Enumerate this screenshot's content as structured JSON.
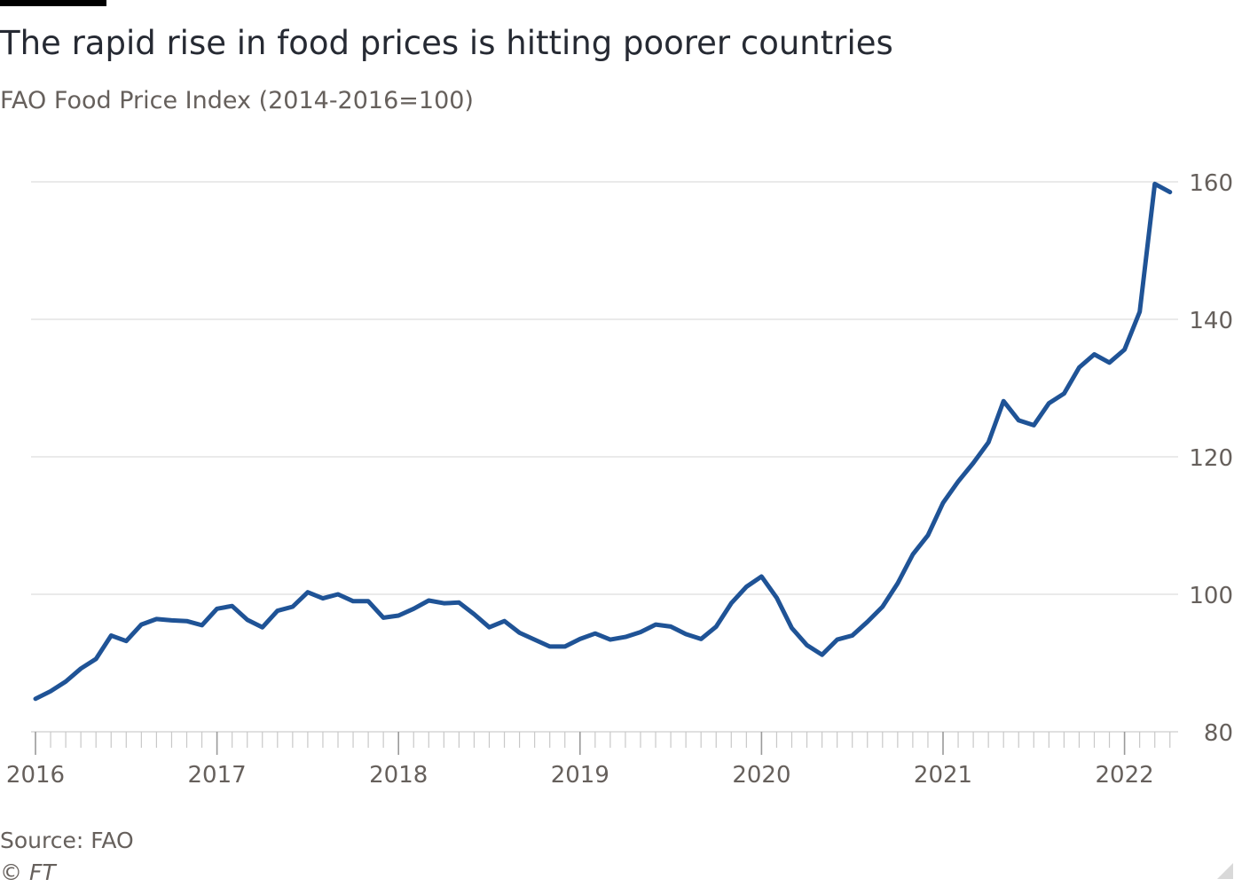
{
  "header": {
    "title": "The rapid rise in food prices is hitting poorer countries",
    "subtitle": "FAO Food Price Index (2014-2016=100)"
  },
  "footer": {
    "source": "Source: FAO",
    "copyright": "© FT"
  },
  "colors": {
    "line": "#1f5396",
    "grid": "#e3e3e3",
    "axis_text": "#66605c"
  },
  "chart_data": {
    "type": "line",
    "title": "The rapid rise in food prices is hitting poorer countries",
    "subtitle": "FAO Food Price Index (2014-2016=100)",
    "xlabel": "",
    "ylabel": "",
    "x_ticks": [
      "2016",
      "2017",
      "2018",
      "2019",
      "2020",
      "2021",
      "2022"
    ],
    "ylim": [
      80,
      160
    ],
    "y_ticks": [
      80,
      100,
      120,
      140,
      160
    ],
    "y_axis_side": "right",
    "grid": "horizontal",
    "legend": "none",
    "x": [
      "2016-01",
      "2016-02",
      "2016-03",
      "2016-04",
      "2016-05",
      "2016-06",
      "2016-07",
      "2016-08",
      "2016-09",
      "2016-10",
      "2016-11",
      "2016-12",
      "2017-01",
      "2017-02",
      "2017-03",
      "2017-04",
      "2017-05",
      "2017-06",
      "2017-07",
      "2017-08",
      "2017-09",
      "2017-10",
      "2017-11",
      "2017-12",
      "2018-01",
      "2018-02",
      "2018-03",
      "2018-04",
      "2018-05",
      "2018-06",
      "2018-07",
      "2018-08",
      "2018-09",
      "2018-10",
      "2018-11",
      "2018-12",
      "2019-01",
      "2019-02",
      "2019-03",
      "2019-04",
      "2019-05",
      "2019-06",
      "2019-07",
      "2019-08",
      "2019-09",
      "2019-10",
      "2019-11",
      "2019-12",
      "2020-01",
      "2020-02",
      "2020-03",
      "2020-04",
      "2020-05",
      "2020-06",
      "2020-07",
      "2020-08",
      "2020-09",
      "2020-10",
      "2020-11",
      "2020-12",
      "2021-01",
      "2021-02",
      "2021-03",
      "2021-04",
      "2021-05",
      "2021-06",
      "2021-07",
      "2021-08",
      "2021-09",
      "2021-10",
      "2021-11",
      "2021-12",
      "2022-01",
      "2022-02",
      "2022-03",
      "2022-04"
    ],
    "series": [
      {
        "values": [
          84.8,
          85.9,
          87.3,
          89.2,
          90.6,
          94.0,
          93.2,
          95.6,
          96.4,
          96.2,
          96.1,
          95.5,
          97.9,
          98.3,
          96.3,
          95.2,
          97.6,
          98.2,
          100.3,
          99.4,
          100.0,
          99.0,
          99.0,
          96.6,
          96.9,
          97.9,
          99.1,
          98.7,
          98.8,
          97.1,
          95.2,
          96.1,
          94.4,
          93.4,
          92.4,
          92.4,
          93.5,
          94.3,
          93.4,
          93.8,
          94.5,
          95.6,
          95.3,
          94.2,
          93.5,
          95.3,
          98.7,
          101.1,
          102.6,
          99.5,
          95.1,
          92.6,
          91.2,
          93.4,
          94.0,
          96.0,
          98.2,
          101.6,
          105.8,
          108.6,
          113.3,
          116.4,
          119.1,
          122.1,
          128.1,
          125.3,
          124.6,
          127.8,
          129.2,
          133.0,
          134.9,
          133.7,
          135.6,
          141.1,
          159.7,
          158.5
        ]
      }
    ]
  }
}
